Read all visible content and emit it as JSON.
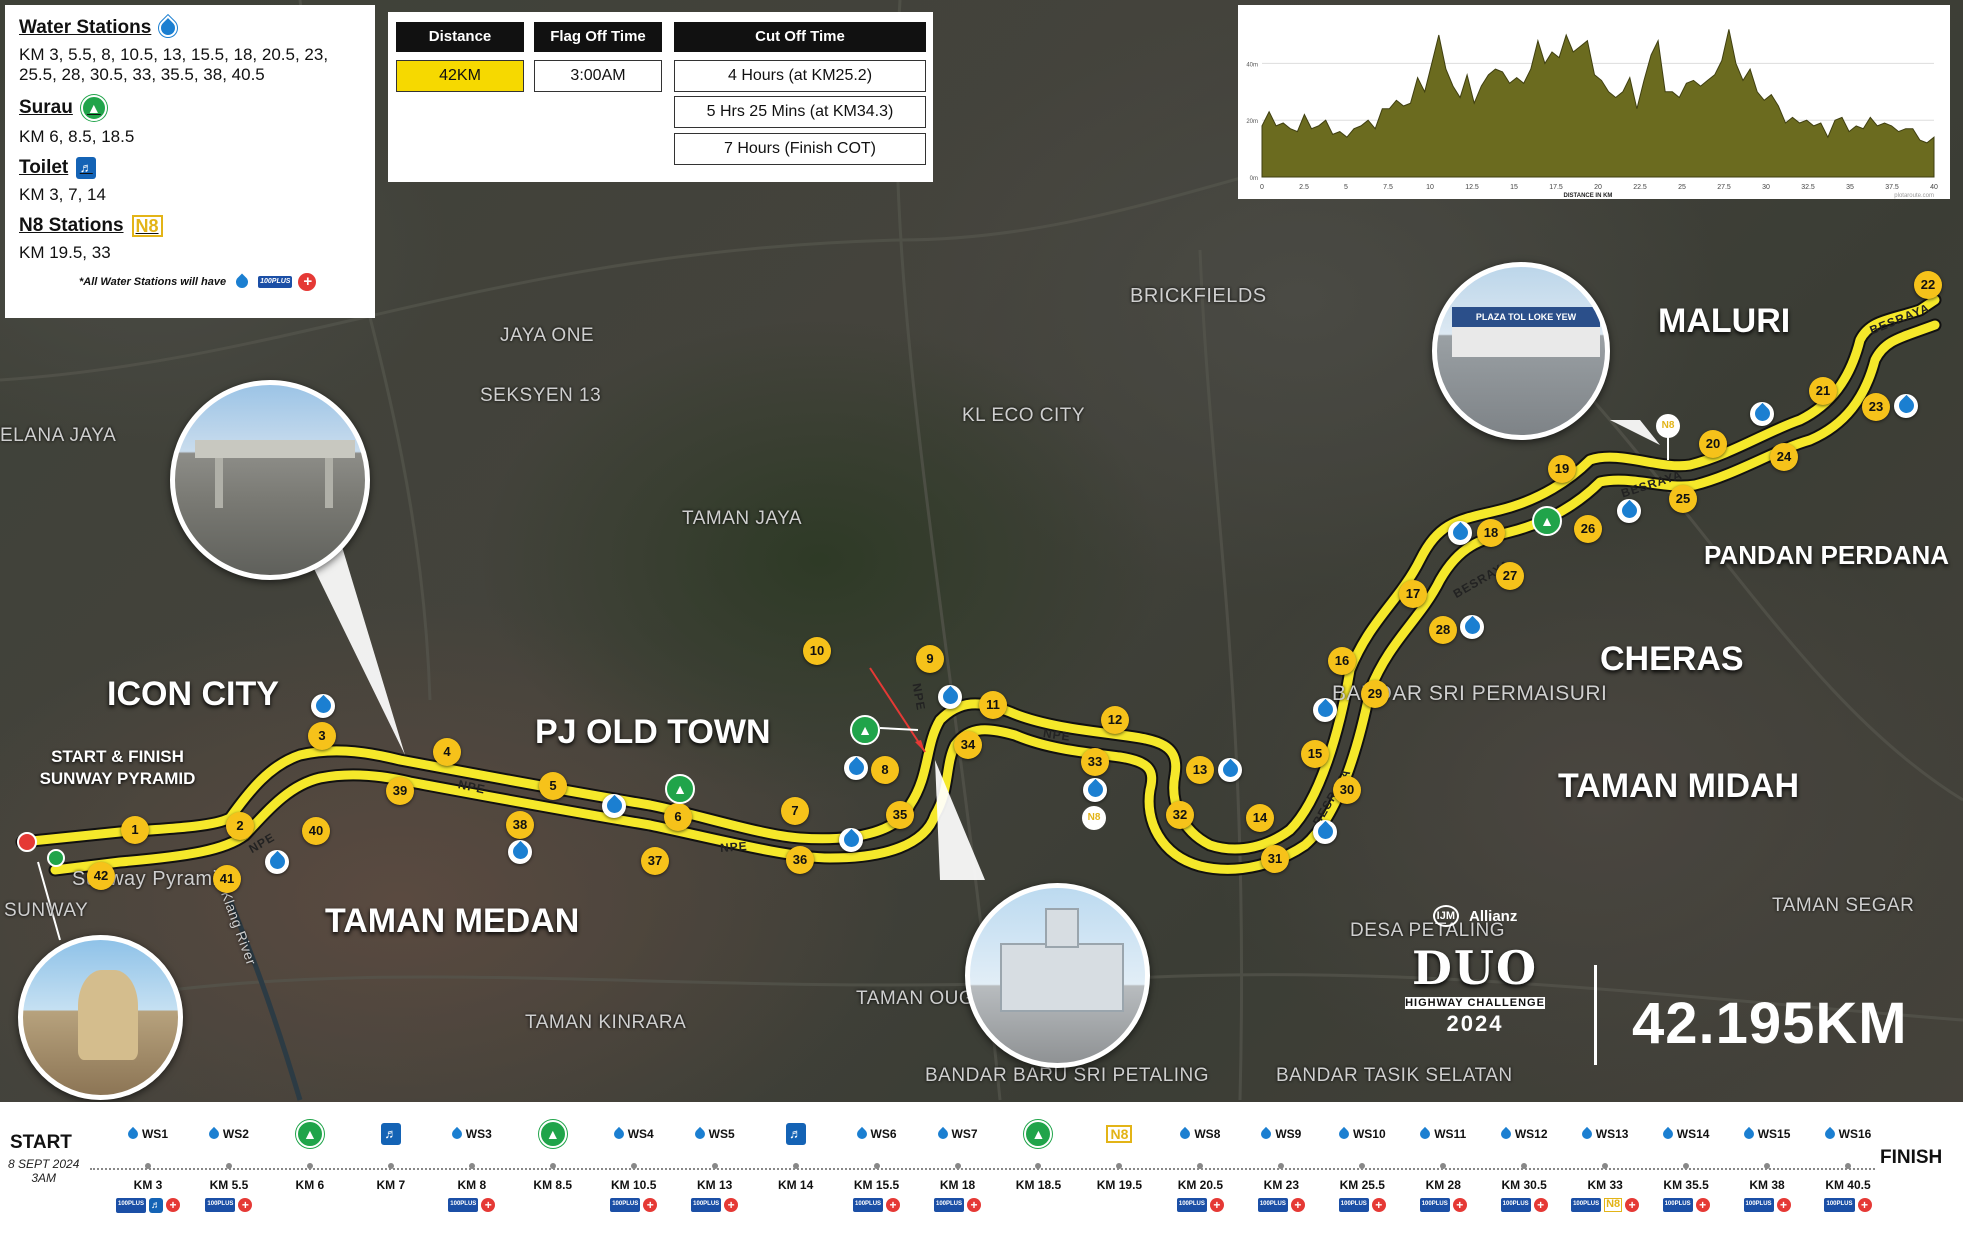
{
  "legend": {
    "water_title": "Water Stations",
    "water_km": "KM 3, 5.5, 8, 10.5, 13, 15.5, 18, 20.5, 23, 25.5, 28, 30.5, 33, 35.5, 38, 40.5",
    "surau_title": "Surau",
    "surau_km": "KM 6, 8.5, 18.5",
    "toilet_title": "Toilet",
    "toilet_km": "KM 3, 7, 14",
    "n8_title": "N8 Stations",
    "n8_km": "KM 19.5, 33",
    "note": "*All Water Stations will have",
    "plus_label": "100PLUS"
  },
  "info": {
    "distance_header": "Distance",
    "distance_value": "42KM",
    "flagoff_header": "Flag Off Time",
    "flagoff_value": "3:00AM",
    "cutoff_header": "Cut Off Time",
    "cutoff_values": [
      "4 Hours (at KM25.2)",
      "5 Hrs 25 Mins (at KM34.3)",
      "7 Hours (Finish COT)"
    ]
  },
  "elevation": {
    "y_ticks": [
      "40m",
      "20m",
      "0m"
    ],
    "x_ticks": [
      "0",
      "2.5",
      "5",
      "7.5",
      "10",
      "12.5",
      "15",
      "17.5",
      "20",
      "22.5",
      "25",
      "27.5",
      "30",
      "32.5",
      "35",
      "37.5",
      "40"
    ],
    "x_label": "DISTANCE IN KM",
    "credit": "plotaroute.com",
    "profile_m": [
      18,
      23,
      18,
      19,
      17,
      16,
      22,
      17,
      18,
      20,
      15,
      16,
      14,
      17,
      18,
      20,
      17,
      24,
      24,
      27,
      25,
      26,
      35,
      30,
      40,
      50,
      38,
      32,
      28,
      36,
      26,
      32,
      36,
      38,
      37,
      33,
      35,
      33,
      38,
      48,
      40,
      44,
      42,
      50,
      44,
      46,
      48,
      36,
      34,
      30,
      28,
      30,
      35,
      24,
      34,
      43,
      48,
      30,
      30,
      28,
      33,
      34,
      32,
      34,
      36,
      41,
      52,
      40,
      34,
      38,
      30,
      27,
      29,
      25,
      19,
      21,
      19,
      20,
      18,
      19,
      14,
      20,
      21,
      16,
      18,
      17,
      21,
      18,
      19,
      18,
      16,
      17,
      17,
      13,
      12,
      14
    ]
  },
  "map_labels": {
    "places": [
      "BRICKFIELDS",
      "JAYA ONE",
      "SEKSYEN 13",
      "ELANA JAYA",
      "KL ECO CITY",
      "TAMAN JAYA",
      "BANDAR SRI PERMAISURI",
      "TAMAN SEGAR",
      "DESA PETALING",
      "TAMAN OUG",
      "TAMAN KINRARA",
      "BANDAR BARU SRI PETALING",
      "BANDAR TASIK SELATAN",
      "SUNWAY",
      "Sunway Pyramid",
      "Klang River"
    ],
    "areas": [
      "ICON CITY",
      "PJ OLD TOWN",
      "TAMAN MEDAN",
      "MALURI",
      "PANDAN PERDANA",
      "CHERAS",
      "TAMAN MIDAH"
    ],
    "start_finish": [
      "START & FINISH",
      "SUNWAY PYRAMID"
    ],
    "roads": [
      "NPE",
      "NPE",
      "NPE",
      "NPE",
      "NPE",
      "BESRAYA",
      "BESRAYA",
      "BESRAYA",
      "BESRAYA"
    ],
    "photo_sign": "PLAZA TOL LOKE YEW"
  },
  "km_markers": [
    "1",
    "2",
    "3",
    "4",
    "5",
    "6",
    "7",
    "8",
    "9",
    "10",
    "11",
    "12",
    "13",
    "14",
    "15",
    "16",
    "17",
    "18",
    "19",
    "20",
    "21",
    "22",
    "23",
    "24",
    "25",
    "26",
    "27",
    "28",
    "29",
    "30",
    "31",
    "32",
    "33",
    "34",
    "35",
    "36",
    "37",
    "38",
    "39",
    "40",
    "41",
    "42"
  ],
  "brand": {
    "sponsor1": "IJM",
    "sponsor2": "Allianz",
    "event_logo": "DUO",
    "event_sub": "HIGHWAY CHALLENGE",
    "year": "2024",
    "distance": "42.195KM"
  },
  "timeline": {
    "start": "START",
    "date": "8 SEPT 2024",
    "time": "3AM",
    "finish": "FINISH",
    "stations": [
      {
        "type": "water",
        "label": "WS1",
        "km": "KM 3",
        "icons": [
          "plus",
          "toilet",
          "aid"
        ]
      },
      {
        "type": "water",
        "label": "WS2",
        "km": "KM 5.5",
        "icons": [
          "plus",
          "aid"
        ]
      },
      {
        "type": "surau",
        "label": "",
        "km": "KM 6",
        "icons": []
      },
      {
        "type": "toilet",
        "label": "",
        "km": "KM 7",
        "icons": []
      },
      {
        "type": "water",
        "label": "WS3",
        "km": "KM 8",
        "icons": [
          "plus",
          "aid"
        ]
      },
      {
        "type": "surau",
        "label": "",
        "km": "KM 8.5",
        "icons": []
      },
      {
        "type": "water",
        "label": "WS4",
        "km": "KM 10.5",
        "icons": [
          "plus",
          "aid"
        ]
      },
      {
        "type": "water",
        "label": "WS5",
        "km": "KM 13",
        "icons": [
          "plus",
          "aid"
        ]
      },
      {
        "type": "toilet",
        "label": "",
        "km": "KM 14",
        "icons": []
      },
      {
        "type": "water",
        "label": "WS6",
        "km": "KM 15.5",
        "icons": [
          "plus",
          "aid"
        ]
      },
      {
        "type": "water",
        "label": "WS7",
        "km": "KM 18",
        "icons": [
          "plus",
          "aid"
        ]
      },
      {
        "type": "surau",
        "label": "",
        "km": "KM 18.5",
        "icons": []
      },
      {
        "type": "n8",
        "label": "",
        "km": "KM 19.5",
        "icons": []
      },
      {
        "type": "water",
        "label": "WS8",
        "km": "KM 20.5",
        "icons": [
          "plus",
          "aid"
        ]
      },
      {
        "type": "water",
        "label": "WS9",
        "km": "KM 23",
        "icons": [
          "plus",
          "aid"
        ]
      },
      {
        "type": "water",
        "label": "WS10",
        "km": "KM 25.5",
        "icons": [
          "plus",
          "aid"
        ]
      },
      {
        "type": "water",
        "label": "WS11",
        "km": "KM 28",
        "icons": [
          "plus",
          "aid"
        ]
      },
      {
        "type": "water",
        "label": "WS12",
        "km": "KM 30.5",
        "icons": [
          "plus",
          "aid"
        ]
      },
      {
        "type": "water",
        "label": "WS13",
        "km": "KM 33",
        "icons": [
          "plus",
          "n8",
          "aid"
        ]
      },
      {
        "type": "water",
        "label": "WS14",
        "km": "KM 35.5",
        "icons": [
          "plus",
          "aid"
        ]
      },
      {
        "type": "water",
        "label": "WS15",
        "km": "KM 38",
        "icons": [
          "plus",
          "aid"
        ]
      },
      {
        "type": "water",
        "label": "WS16",
        "km": "KM 40.5",
        "icons": [
          "plus",
          "aid"
        ]
      }
    ]
  },
  "colors": {
    "route": "#f5e82a",
    "marker": "#f6c21a",
    "water": "#1b7fd1",
    "surau": "#20a44a",
    "aid": "#e53935",
    "n8": "#e3b417",
    "elevation_fill": "#6b6b1f"
  }
}
